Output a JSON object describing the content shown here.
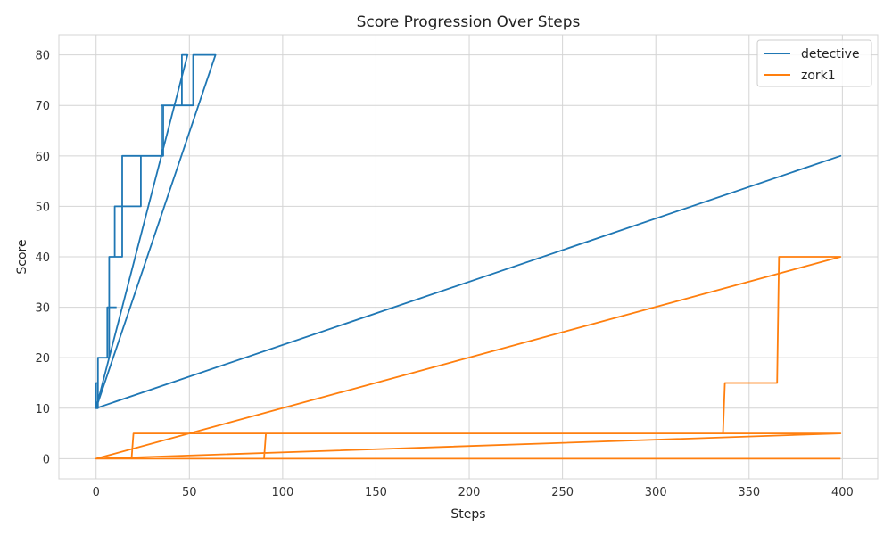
{
  "chart_data": {
    "type": "line",
    "title": "Score Progression Over Steps",
    "xlabel": "Steps",
    "ylabel": "Score",
    "xlim": [
      -19.95,
      418.95
    ],
    "ylim": [
      -4,
      84
    ],
    "xticks": [
      0,
      50,
      100,
      150,
      200,
      250,
      300,
      350,
      400
    ],
    "yticks": [
      0,
      10,
      20,
      30,
      40,
      50,
      60,
      70,
      80
    ],
    "grid": true,
    "legend_position": "top-right",
    "series": [
      {
        "name": "detective",
        "color": "#1f77b4",
        "x": [
          0,
          1,
          1,
          3,
          6,
          6,
          7,
          7,
          10,
          10,
          11,
          11,
          14,
          14,
          19,
          19,
          26,
          26,
          29,
          29,
          35,
          35,
          36,
          36,
          46,
          46,
          49,
          49,
          0,
          0,
          1,
          1,
          4,
          4,
          7,
          7,
          10,
          10,
          14,
          14,
          24,
          24,
          36,
          36,
          45,
          45,
          52,
          52,
          64,
          0,
          399,
          0,
          1,
          1,
          2,
          2,
          7,
          7,
          11
        ],
        "y": [
          10,
          10,
          20,
          20,
          20,
          30,
          30,
          40,
          40,
          50,
          50,
          50,
          50,
          60,
          60,
          60,
          60,
          60,
          60,
          60,
          60,
          70,
          70,
          70,
          70,
          80,
          80,
          80,
          10,
          15,
          15,
          20,
          20,
          20,
          20,
          40,
          40,
          40,
          40,
          50,
          50,
          60,
          60,
          70,
          70,
          70,
          70,
          80,
          80,
          10,
          60,
          10,
          10,
          20,
          20,
          20,
          20,
          30,
          30
        ]
      },
      {
        "name": "zork1",
        "color": "#ff7f0e",
        "x": [
          0,
          19,
          20,
          336,
          337,
          365,
          366,
          399,
          0,
          90,
          91,
          399,
          0,
          399
        ],
        "y": [
          0,
          0,
          5,
          5,
          15,
          15,
          40,
          40,
          0,
          0,
          5,
          5,
          0,
          0
        ]
      }
    ]
  }
}
